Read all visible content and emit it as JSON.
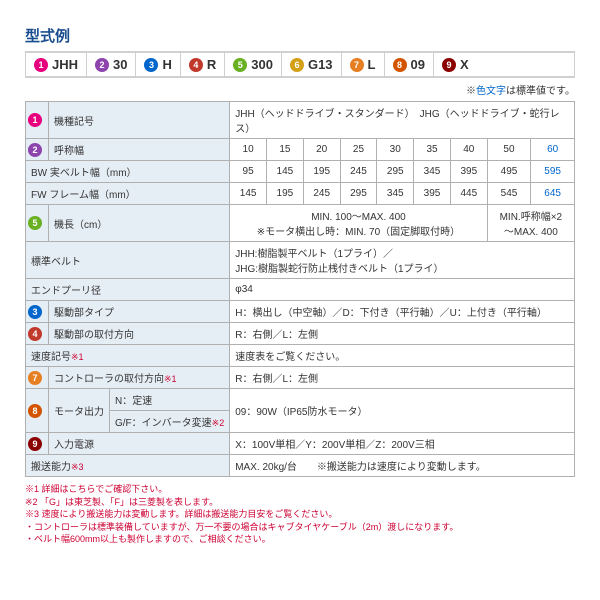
{
  "title": "型式例",
  "circle_colors": {
    "c1": "#e6007e",
    "c2": "#8e44ad",
    "c3": "#0066cc",
    "c4": "#c0392b",
    "c5": "#6ab023",
    "c6": "#d4a017",
    "c7": "#e67e22",
    "c8": "#d35400",
    "c9": "#8b0000"
  },
  "model_parts": [
    "JHH",
    "30",
    "H",
    "R",
    "300",
    "G13",
    "L",
    "09",
    "X"
  ],
  "note_top": "※色文字は標準値です。",
  "rows": {
    "r1_label": "機種記号",
    "r1_val": "JHH（ヘッドドライブ・スタンダード）　JHG（ヘッドドライブ・蛇行レス）",
    "r2_label": "呼称幅",
    "r2_vals": [
      "10",
      "15",
      "20",
      "25",
      "30",
      "35",
      "40",
      "50",
      "60"
    ],
    "bw_label": "BW 実ベルト幅（mm）",
    "bw_vals": [
      "95",
      "145",
      "195",
      "245",
      "295",
      "345",
      "395",
      "495",
      "595"
    ],
    "fw_label": "FW フレーム幅（mm）",
    "fw_vals": [
      "145",
      "195",
      "245",
      "295",
      "345",
      "395",
      "445",
      "545",
      "645"
    ],
    "r5_label": "機長（cm）",
    "r5_val_a": "MIN. 100～MAX. 400\n※モータ横出し時：MIN. 70（固定脚取付時）",
    "r5_val_b": "MIN.呼称幅×2\n～MAX. 400",
    "belt_label": "標準ベルト",
    "belt_val": "JHH:樹脂製平ベルト（1プライ）／\nJHG:樹脂製蛇行防止桟付きベルト（1プライ）",
    "pulley_label": "エンドプーリ径",
    "pulley_val": "φ34",
    "r3_label": "駆動部タイプ",
    "r3_val": "H：横出し（中空軸）／D：下付き（平行軸）／U：上付き（平行軸）",
    "r4_label": "駆動部の取付方向",
    "r4_val": "R：右側／L：左側",
    "speed_label": "速度記号",
    "speed_note": "※1",
    "speed_val": "速度表をご覧ください。",
    "r7_label": "コントローラの取付方向",
    "r7_note": "※1",
    "r7_val": "R：右側／L：左側",
    "r8_label": "モータ出力",
    "r8_sub1": "N：定速",
    "r8_sub2": "G/F：インバータ変速",
    "r8_sub2_note": "※2",
    "r8_val": "09：90W（IP65防水モータ）",
    "r9_label": "入力電源",
    "r9_val": "X：100V単相／Y：200V単相／Z：200V三相",
    "cap_label": "搬送能力",
    "cap_note": "※3",
    "cap_val": "MAX. 20kg/台　　※搬送能力は速度により変動します。"
  },
  "footnotes": [
    "※1 詳細はこちらでご確認下さい。",
    "※2 「G」は東芝製、「F」は三菱製を表します。",
    "※3 速度により搬送能力は変動します。詳細は搬送能力目安をご覧ください。",
    "・コントローラは標準装備していますが、万一不要の場合はキャブタイヤケーブル（2m）渡しになります。",
    "・ベルト幅600mm以上も製作しますので、ご相談ください。"
  ]
}
